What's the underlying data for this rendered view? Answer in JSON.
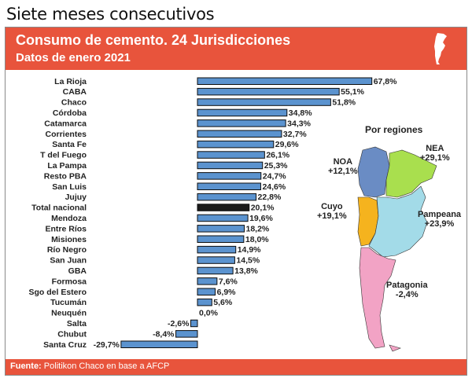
{
  "page": {
    "heading": "Siete meses consecutivos"
  },
  "header": {
    "title": "Consumo de cemento. 24 Jurisdicciones",
    "subtitle": "Datos de enero 2021",
    "icon": "argentina-map-icon"
  },
  "colors": {
    "accent": "#e8543c",
    "bar": "#5b93cf",
    "bar_highlight": "#1a1a1a",
    "bar_border": "#0d0d0d"
  },
  "chart_data": {
    "type": "bar",
    "orientation": "horizontal",
    "categories": [
      "La Rioja",
      "CABA",
      "Chaco",
      "Córdoba",
      "Catamarca",
      "Corrientes",
      "Santa Fe",
      "T del Fuego",
      "La Pampa",
      "Resto PBA",
      "San Luis",
      "Jujuy",
      "Total nacional",
      "Mendoza",
      "Entre Ríos",
      "Misiones",
      "Río Negro",
      "San Juan",
      "GBA",
      "Formosa",
      "Sgo del Estero",
      "Tucumán",
      "Neuquén",
      "Salta",
      "Chubut",
      "Santa Cruz"
    ],
    "values": [
      67.8,
      55.1,
      51.8,
      34.8,
      34.3,
      32.7,
      29.6,
      26.1,
      25.3,
      24.7,
      24.6,
      22.8,
      20.1,
      19.6,
      18.2,
      18.0,
      14.9,
      14.5,
      13.8,
      7.6,
      6.9,
      5.6,
      0.0,
      -2.6,
      -8.4,
      -29.7
    ],
    "labels": [
      "67,8%",
      "55,1%",
      "51,8%",
      "34,8%",
      "34,3%",
      "32,7%",
      "29,6%",
      "26,1%",
      "25,3%",
      "24,7%",
      "24,6%",
      "22,8%",
      "20,1%",
      "19,6%",
      "18,2%",
      "18,0%",
      "14,9%",
      "14,5%",
      "13,8%",
      "7,6%",
      "6,9%",
      "5,6%",
      "0,0%",
      "-2,6%",
      "-8,4%",
      "-29,7%"
    ],
    "highlight": "Total nacional"
  },
  "regions": {
    "title": "Por regiones",
    "items": [
      {
        "name": "NOA",
        "value": "+12,1%",
        "color": "#6a8cc4"
      },
      {
        "name": "NEA",
        "value": "+29,1%",
        "color": "#a9df4e"
      },
      {
        "name": "Cuyo",
        "value": "+19,1%",
        "color": "#f5b31e"
      },
      {
        "name": "Pampeana",
        "value": "+23,9%",
        "color": "#a3dbe8"
      },
      {
        "name": "Patagonia",
        "value": "-2,4%",
        "color": "#f2a3c5"
      }
    ]
  },
  "footer": {
    "source_label": "Fuente:",
    "source_text": "Politikon Chaco en base a AFCP"
  }
}
